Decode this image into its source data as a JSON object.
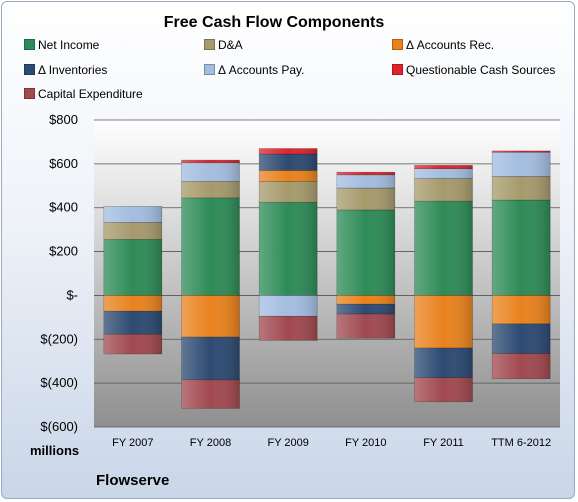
{
  "chart_data": {
    "type": "bar",
    "stacked": true,
    "title": "Free Cash Flow Components",
    "categories": [
      "FY 2007",
      "FY 2008",
      "FY 2009",
      "FY 2010",
      "FY 2011",
      "TTM 6-2012"
    ],
    "ylim": [
      -600,
      800
    ],
    "yticks": [
      -600,
      -400,
      -200,
      0,
      200,
      400,
      600,
      800
    ],
    "ytick_labels": [
      "$(600)",
      "$(400)",
      "$(200)",
      "$-",
      "$200",
      "$400",
      "$600",
      "$800"
    ],
    "ylabel": "millions",
    "grid": true,
    "legend_position": "top",
    "series": [
      {
        "name": "Net Income",
        "color": "#2e8b57",
        "values": [
          255,
          445,
          425,
          390,
          430,
          435
        ]
      },
      {
        "name": "D&A",
        "color": "#a69a6c",
        "values": [
          78,
          75,
          95,
          100,
          103,
          108
        ]
      },
      {
        "name": "Δ Accounts Rec.",
        "color": "#e9821d",
        "values": [
          -72,
          -190,
          50,
          -40,
          -240,
          -130
        ]
      },
      {
        "name": "Δ Inventories",
        "color": "#2d4a72",
        "values": [
          -105,
          -195,
          75,
          -45,
          -135,
          -135
        ]
      },
      {
        "name": "Δ Accounts Pay.",
        "color": "#a3bde0",
        "values": [
          73,
          85,
          -95,
          60,
          45,
          110
        ]
      },
      {
        "name": "Questionable Cash Sources",
        "color": "#e0232b",
        "values": [
          0,
          12,
          25,
          12,
          15,
          6
        ]
      },
      {
        "name": "Capital Expenditure",
        "color": "#a0494f",
        "values": [
          -90,
          -130,
          -110,
          -110,
          -110,
          -115
        ]
      }
    ]
  },
  "footer": "Flowserve"
}
